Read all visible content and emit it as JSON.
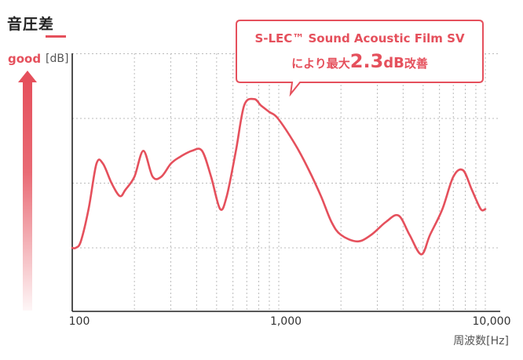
{
  "chart_data": {
    "type": "line",
    "title": "音圧差",
    "ylabel": "good",
    "yunit": "[dB]",
    "xlabel": "周波数[Hz]",
    "xscale": "log",
    "xlim": [
      100,
      10000
    ],
    "x_ticks": [
      "100",
      "1,000",
      "10,000"
    ],
    "grid": true,
    "series": [
      {
        "color": "#e5505c",
        "x": [
          100,
          104,
          110,
          120,
          131,
          141,
          155,
          170,
          181,
          200,
          221,
          245,
          270,
          300,
          330,
          380,
          425,
          470,
          520,
          560,
          620,
          680,
          760,
          820,
          900,
          990,
          1200,
          1400,
          1600,
          1800,
          2000,
          2400,
          2800,
          3300,
          3800,
          4300,
          4900,
          5400,
          6200,
          7000,
          7800,
          8600,
          9500,
          10000
        ],
        "y": [
          0.0,
          0.0,
          0.1,
          0.6,
          1.3,
          1.3,
          1.0,
          0.8,
          0.9,
          1.1,
          1.5,
          1.1,
          1.1,
          1.3,
          1.4,
          1.5,
          1.5,
          1.1,
          0.6,
          0.8,
          1.5,
          2.2,
          2.3,
          2.2,
          2.1,
          2.0,
          1.6,
          1.2,
          0.8,
          0.4,
          0.2,
          0.1,
          0.2,
          0.4,
          0.5,
          0.2,
          -0.1,
          0.2,
          0.6,
          1.1,
          1.2,
          0.9,
          0.6,
          0.6
        ]
      }
    ],
    "annotation": {
      "line1": "S-LEC™ Sound Acoustic Film SV",
      "line2_pre": "により最大",
      "line2_value": "2.3",
      "line2_unit": "dB",
      "line2_post": "改善"
    }
  }
}
